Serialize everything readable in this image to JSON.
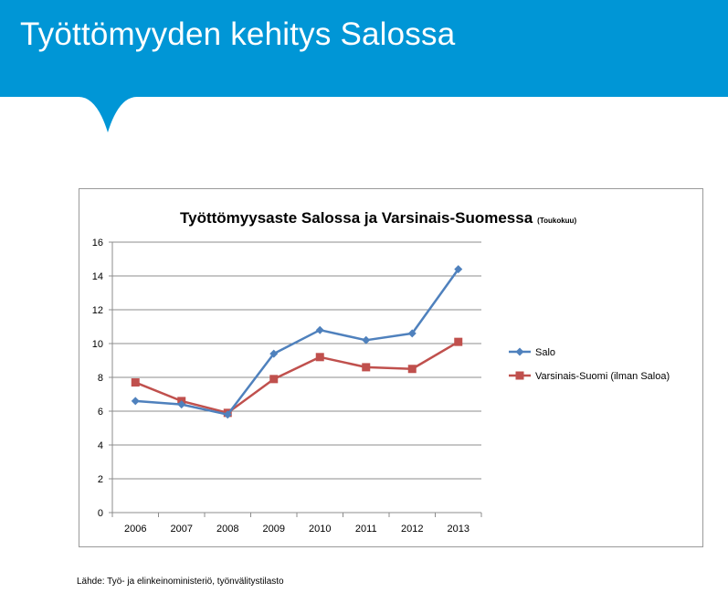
{
  "slide": {
    "title": "Työttömyyden kehitys Salossa",
    "source": "Lähde: Työ- ja elinkeinoministeriö, työnvälitystilasto",
    "banner_color": "#0096d6"
  },
  "chart_data": {
    "type": "line",
    "title": "Työttömyysaste Salossa ja Varsinais-Suomessa",
    "subtitle": "(Toukokuu)",
    "xlabel": "",
    "ylabel": "",
    "categories": [
      "2006",
      "2007",
      "2008",
      "2009",
      "2010",
      "2011",
      "2012",
      "2013"
    ],
    "ylim": [
      0,
      16
    ],
    "yticks": [
      0,
      2,
      4,
      6,
      8,
      10,
      12,
      14,
      16
    ],
    "grid": true,
    "legend_position": "right",
    "series": [
      {
        "name": "Salo",
        "color": "#4f81bd",
        "marker": "diamond",
        "values": [
          6.6,
          6.4,
          5.8,
          9.4,
          10.8,
          10.2,
          10.6,
          14.4
        ]
      },
      {
        "name": "Varsinais-Suomi (ilman Saloa)",
        "color": "#c0504d",
        "marker": "square",
        "values": [
          7.7,
          6.6,
          5.9,
          7.9,
          9.2,
          8.6,
          8.5,
          10.1
        ]
      }
    ]
  }
}
